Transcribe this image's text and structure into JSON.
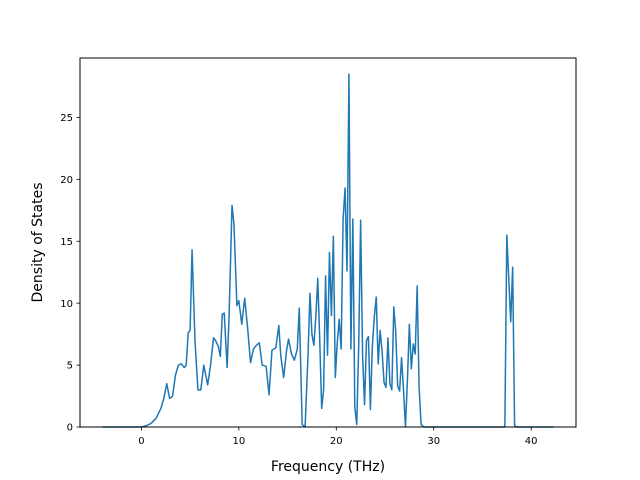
{
  "chart_data": {
    "type": "line",
    "title": "",
    "xlabel": "Frequency (THz)",
    "ylabel": "Density of States",
    "xlim": [
      -6.3,
      44.6
    ],
    "ylim": [
      0,
      29.8
    ],
    "xticks": [
      0,
      10,
      20,
      30,
      40
    ],
    "yticks": [
      0,
      5,
      10,
      15,
      20,
      25
    ],
    "grid": false,
    "legend": "none",
    "colors": {
      "line": "#1f77b4",
      "axes": "#000000",
      "background": "#ffffff"
    },
    "series": [
      {
        "x": [
          -4.0,
          0.0,
          0.5,
          1.0,
          1.5,
          2.0,
          2.3,
          2.6,
          2.9,
          3.2,
          3.5,
          3.8,
          4.1,
          4.4,
          4.6,
          4.8,
          5.0,
          5.2,
          5.5,
          5.8,
          6.1,
          6.4,
          6.8,
          7.1,
          7.4,
          7.6,
          7.9,
          8.1,
          8.3,
          8.5,
          8.8,
          9.0,
          9.3,
          9.5,
          9.8,
          10.0,
          10.3,
          10.6,
          10.9,
          11.2,
          11.5,
          11.8,
          12.1,
          12.4,
          12.8,
          13.1,
          13.4,
          13.8,
          14.1,
          14.3,
          14.6,
          14.9,
          15.1,
          15.4,
          15.7,
          16.0,
          16.2,
          16.5,
          16.8,
          17.1,
          17.3,
          17.5,
          17.7,
          17.9,
          18.1,
          18.3,
          18.5,
          18.7,
          18.9,
          19.1,
          19.3,
          19.5,
          19.7,
          19.9,
          20.1,
          20.3,
          20.5,
          20.7,
          20.9,
          21.1,
          21.3,
          21.5,
          21.7,
          21.9,
          22.1,
          22.3,
          22.5,
          22.7,
          22.9,
          23.1,
          23.3,
          23.5,
          23.7,
          23.9,
          24.1,
          24.3,
          24.5,
          24.7,
          24.9,
          25.1,
          25.3,
          25.5,
          25.7,
          25.9,
          26.1,
          26.3,
          26.5,
          26.7,
          26.9,
          27.1,
          27.3,
          27.5,
          27.7,
          27.9,
          28.1,
          28.3,
          28.5,
          28.7,
          29.0,
          29.5,
          30.0,
          37.3,
          37.5,
          37.7,
          37.9,
          38.1,
          38.3,
          38.5,
          42.3
        ],
        "y": [
          0,
          0,
          0.1,
          0.3,
          0.7,
          1.5,
          2.3,
          3.5,
          2.3,
          2.5,
          4.2,
          5.0,
          5.1,
          4.8,
          5.0,
          7.6,
          7.8,
          14.3,
          7.0,
          3.0,
          3.0,
          5.0,
          3.4,
          5.0,
          7.2,
          7.0,
          6.5,
          5.7,
          9.1,
          9.2,
          4.8,
          9.0,
          17.9,
          16.4,
          9.8,
          10.2,
          8.3,
          10.4,
          8.0,
          5.2,
          6.3,
          6.6,
          6.8,
          5.0,
          4.9,
          2.6,
          6.2,
          6.4,
          8.2,
          5.8,
          4.0,
          6.2,
          7.1,
          5.9,
          5.4,
          6.3,
          9.6,
          0.2,
          0,
          5.8,
          10.8,
          7.5,
          6.6,
          8.9,
          12.0,
          7.1,
          1.5,
          3.0,
          12.2,
          5.8,
          14.1,
          9.0,
          15.4,
          4.0,
          6.8,
          8.7,
          6.3,
          16.8,
          19.3,
          12.6,
          28.5,
          6.3,
          16.8,
          1.6,
          0.2,
          6.5,
          16.7,
          5.8,
          1.8,
          7.0,
          7.3,
          1.4,
          6.5,
          8.9,
          10.5,
          5.1,
          7.8,
          6.1,
          3.6,
          3.2,
          7.2,
          3.5,
          3.0,
          9.7,
          7.7,
          3.3,
          2.9,
          5.6,
          3.0,
          0,
          3.8,
          8.3,
          4.7,
          6.7,
          5.9,
          11.4,
          3.2,
          0.2,
          0,
          0,
          0,
          0,
          15.5,
          12.0,
          8.5,
          12.9,
          0.1,
          0,
          0
        ]
      }
    ]
  }
}
